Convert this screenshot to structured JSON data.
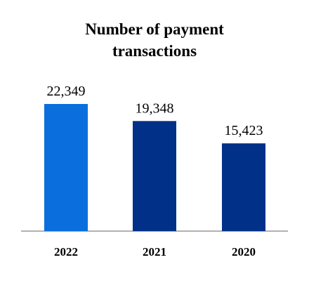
{
  "chart_data": {
    "type": "bar",
    "title": "Number of payment transactions",
    "categories": [
      "2022",
      "2021",
      "2020"
    ],
    "values": [
      22349,
      19348,
      15423
    ],
    "value_labels": [
      "22,349",
      "19,348",
      "15,423"
    ],
    "colors": [
      "#0a6fdc",
      "#003087",
      "#003087"
    ]
  }
}
